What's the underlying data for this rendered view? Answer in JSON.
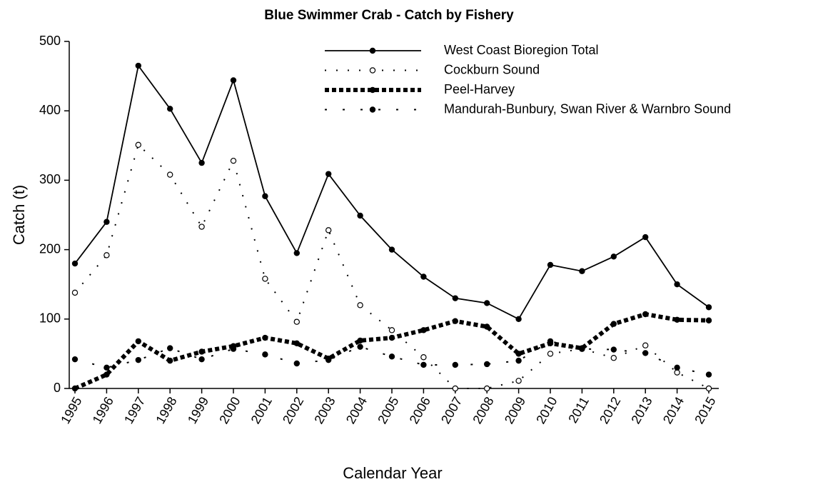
{
  "chart_data": {
    "type": "line",
    "title": "Blue Swimmer Crab - Catch by Fishery",
    "x_label": "Calendar Year",
    "y_label": "Catch (t)",
    "categories": [
      "1995",
      "1996",
      "1997",
      "1998",
      "1999",
      "2000",
      "2001",
      "2002",
      "2003",
      "2004",
      "2005",
      "2006",
      "2007",
      "2008",
      "2009",
      "2010",
      "2011",
      "2012",
      "2013",
      "2014",
      "2015"
    ],
    "ylim": [
      0,
      500
    ],
    "yticks": [
      0,
      100,
      200,
      300,
      400,
      500
    ],
    "grid": false,
    "legend": "top",
    "series": [
      {
        "name": "West Coast Bioregion Total",
        "color": "#000000",
        "line_style": "solid",
        "marker": "filled",
        "values": [
          180,
          240,
          465,
          403,
          325,
          444,
          277,
          195,
          309,
          249,
          200,
          161,
          130,
          123,
          100,
          178,
          169,
          190,
          218,
          150,
          117
        ]
      },
      {
        "name": "Cockburn Sound",
        "color": "#000000",
        "line_style": "dotted",
        "marker": "open",
        "values": [
          138,
          192,
          351,
          308,
          233,
          328,
          158,
          96,
          228,
          120,
          84,
          45,
          0,
          0,
          11,
          50,
          57,
          44,
          62,
          23,
          0
        ]
      },
      {
        "name": "Peel-Harvey",
        "color": "#000000",
        "line_style": "thick-dashed",
        "marker": "filled",
        "values": [
          0,
          20,
          68,
          40,
          53,
          61,
          73,
          65,
          43,
          69,
          73,
          84,
          97,
          89,
          50,
          65,
          58,
          93,
          107,
          99,
          98
        ]
      },
      {
        "name": "Mandurah-Bunbury, Swan River & Warnbro Sound",
        "color": "#000000",
        "line_style": "dashdot",
        "marker": "filled",
        "values": [
          42,
          30,
          41,
          58,
          42,
          57,
          49,
          36,
          41,
          60,
          46,
          34,
          34,
          35,
          40,
          68,
          57,
          56,
          51,
          30,
          20
        ]
      }
    ]
  }
}
